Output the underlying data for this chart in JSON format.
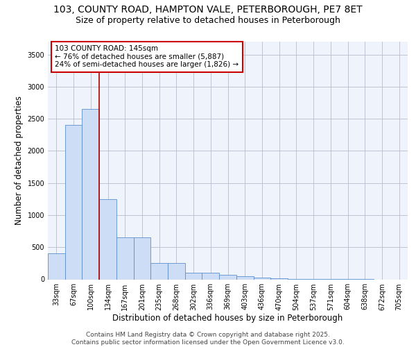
{
  "title_line1": "103, COUNTY ROAD, HAMPTON VALE, PETERBOROUGH, PE7 8ET",
  "title_line2": "Size of property relative to detached houses in Peterborough",
  "xlabel": "Distribution of detached houses by size in Peterborough",
  "ylabel": "Number of detached properties",
  "categories": [
    "33sqm",
    "67sqm",
    "100sqm",
    "134sqm",
    "167sqm",
    "201sqm",
    "235sqm",
    "268sqm",
    "302sqm",
    "336sqm",
    "369sqm",
    "403sqm",
    "436sqm",
    "470sqm",
    "504sqm",
    "537sqm",
    "571sqm",
    "604sqm",
    "638sqm",
    "672sqm",
    "705sqm"
  ],
  "values": [
    400,
    2400,
    2650,
    1250,
    650,
    650,
    250,
    250,
    100,
    100,
    70,
    50,
    30,
    15,
    5,
    3,
    2,
    1,
    1,
    0,
    0
  ],
  "bar_color": "#ccddf5",
  "bar_edge_color": "#5b8fcc",
  "vline_x": 2.5,
  "vline_color": "#aa0000",
  "annotation_text": "103 COUNTY ROAD: 145sqm\n← 76% of detached houses are smaller (5,887)\n24% of semi-detached houses are larger (1,826) →",
  "annotation_box_color": "#ffffff",
  "annotation_box_edge_color": "#cc0000",
  "ylim": [
    0,
    3700
  ],
  "yticks": [
    0,
    500,
    1000,
    1500,
    2000,
    2500,
    3000,
    3500
  ],
  "bg_color": "#eef3fc",
  "grid_color": "#bbbbcc",
  "title_fontsize": 10,
  "subtitle_fontsize": 9,
  "axis_label_fontsize": 8.5,
  "tick_fontsize": 7,
  "annotation_fontsize": 7.5,
  "footer_fontsize": 6.5,
  "footer_line1": "Contains HM Land Registry data © Crown copyright and database right 2025.",
  "footer_line2": "Contains public sector information licensed under the Open Government Licence v3.0."
}
